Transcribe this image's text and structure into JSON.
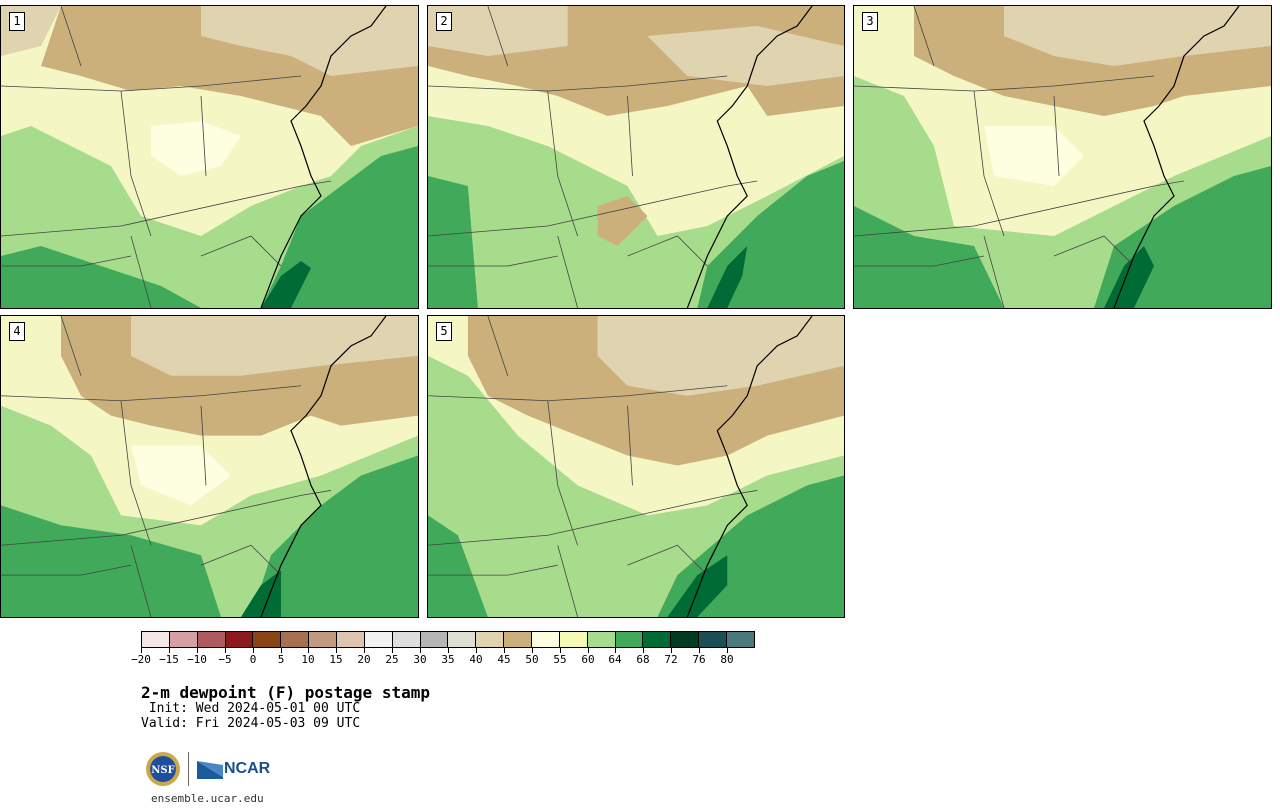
{
  "panels": [
    {
      "number": "1"
    },
    {
      "number": "2"
    },
    {
      "number": "3"
    },
    {
      "number": "4"
    },
    {
      "number": "5"
    }
  ],
  "legend": {
    "colors": [
      "#f3e7e7",
      "#d4a0a5",
      "#ad5a60",
      "#8c1a1c",
      "#8b4513",
      "#a86f51",
      "#c29a80",
      "#dfc4b1",
      "#f2f2f2",
      "#dedede",
      "#b5b5b5",
      "#dedfd1",
      "#e0d3b0",
      "#cbb07c",
      "#fefee0",
      "#f7f9b8",
      "#a8dc8d",
      "#40a95a",
      "#006b35",
      "#003d20",
      "#1a5055",
      "#4a7a7c"
    ],
    "tick_labels": [
      "−20",
      "−15",
      "−10",
      "−5",
      "0",
      "5",
      "10",
      "15",
      "20",
      "25",
      "30",
      "35",
      "40",
      "45",
      "50",
      "55",
      "60",
      "64",
      "68",
      "72",
      "76",
      "80"
    ]
  },
  "title": "2-m dewpoint (F) postage stamp",
  "init": " Init: Wed 2024-05-01 00 UTC",
  "valid": "Valid: Fri 2024-05-03 09 UTC",
  "logos": {
    "nsf": "NSF",
    "ncar": "NCAR"
  },
  "footer": "ensemble.ucar.edu"
}
